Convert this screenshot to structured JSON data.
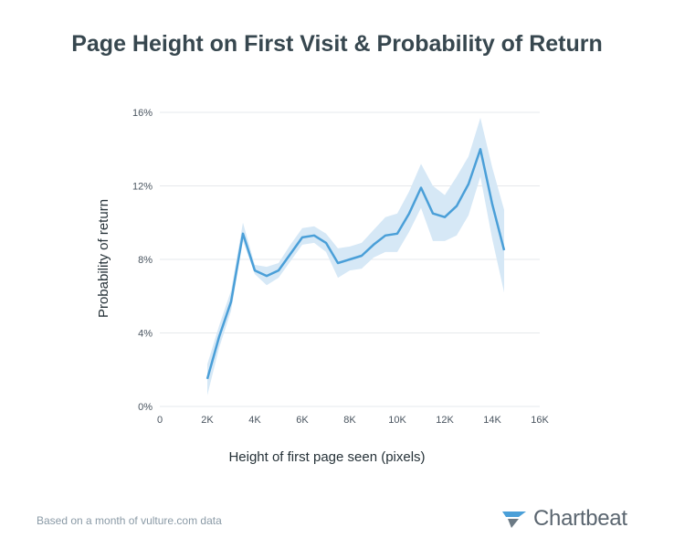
{
  "title": "Page Height on First Visit & Probability of Return",
  "footer": {
    "source_note": "Based on a month of vulture.com data",
    "brand": "Chartbeat",
    "brand_icon": "chartbeat-logo-icon"
  },
  "colors": {
    "line": "#4a9fd8",
    "band": "#d6e8f6",
    "grid": "#e6e9ec",
    "title": "#37474f"
  },
  "chart_data": {
    "type": "line",
    "title": "Page Height on First Visit & Probability of Return",
    "xlabel": "Height of first page seen (pixels)",
    "ylabel": "Probability of return",
    "xlim": [
      0,
      16000
    ],
    "ylim": [
      0,
      16
    ],
    "x_ticks": [
      0,
      2000,
      4000,
      6000,
      8000,
      10000,
      12000,
      14000,
      16000
    ],
    "x_tick_labels": [
      "0",
      "2K",
      "4K",
      "6K",
      "8K",
      "10K",
      "12K",
      "14K",
      "16K"
    ],
    "y_ticks": [
      0,
      4,
      8,
      12,
      16
    ],
    "y_tick_labels": [
      "0%",
      "4%",
      "8%",
      "12%",
      "16%"
    ],
    "grid": "horizontal",
    "legend": "none",
    "series": [
      {
        "x": [
          2000,
          2500,
          3000,
          3500,
          4000,
          4500,
          5000,
          5500,
          6000,
          6500,
          7000,
          7500,
          8000,
          8500,
          9000,
          9500,
          10000,
          10500,
          11000,
          11500,
          12000,
          12500,
          13000,
          13500,
          14000,
          14500
        ],
        "y": [
          1.5,
          3.8,
          5.7,
          9.4,
          7.4,
          7.1,
          7.4,
          8.3,
          9.2,
          9.3,
          8.9,
          7.8,
          8.0,
          8.2,
          8.8,
          9.3,
          9.4,
          10.5,
          11.9,
          10.5,
          10.3,
          10.9,
          12.1,
          14.0,
          11.0,
          8.5
        ],
        "lower": [
          0.6,
          3.2,
          5.2,
          9.0,
          7.2,
          6.6,
          7.0,
          7.9,
          8.8,
          8.9,
          8.4,
          7.0,
          7.4,
          7.5,
          8.1,
          8.4,
          8.4,
          9.5,
          10.8,
          9.0,
          9.0,
          9.3,
          10.4,
          12.5,
          9.1,
          6.2
        ],
        "upper": [
          2.3,
          4.4,
          6.3,
          10.0,
          7.7,
          7.6,
          7.8,
          8.8,
          9.7,
          9.8,
          9.4,
          8.6,
          8.7,
          8.9,
          9.6,
          10.3,
          10.5,
          11.7,
          13.2,
          12.0,
          11.5,
          12.5,
          13.6,
          15.7,
          13.0,
          10.7
        ]
      }
    ]
  }
}
